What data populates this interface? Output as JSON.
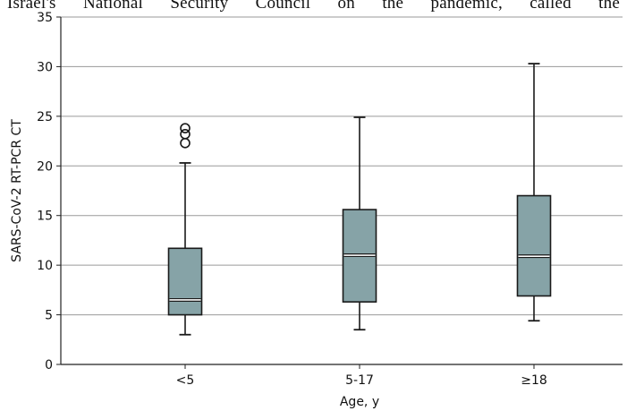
{
  "background_text": "Israel's National Security Council on the pandemic, called the",
  "chart_data": {
    "type": "box",
    "title": "",
    "xlabel": "Age, y",
    "ylabel": "SARS-CoV-2 RT-PCR CT",
    "ylim": [
      0,
      35
    ],
    "yticks": [
      0,
      5,
      10,
      15,
      20,
      25,
      30,
      35
    ],
    "grid": true,
    "categories": [
      "<5",
      "5-17",
      "≥18"
    ],
    "boxes": [
      {
        "category": "<5",
        "whisker_low": 3.0,
        "q1": 5.0,
        "median": 6.5,
        "q3": 11.7,
        "whisker_high": 20.3,
        "outliers": [
          22.3,
          23.2,
          23.8
        ]
      },
      {
        "category": "5-17",
        "whisker_low": 3.5,
        "q1": 6.3,
        "median": 11.0,
        "q3": 15.6,
        "whisker_high": 24.9,
        "outliers": []
      },
      {
        "category": "≥18",
        "whisker_low": 4.4,
        "q1": 6.9,
        "median": 10.9,
        "q3": 17.0,
        "whisker_high": 30.3,
        "outliers": []
      }
    ],
    "colors": {
      "box_fill": "#86a3a7",
      "box_stroke": "#1a1a1a",
      "grid": "#9a9a9a",
      "median": "#ffffff"
    }
  }
}
